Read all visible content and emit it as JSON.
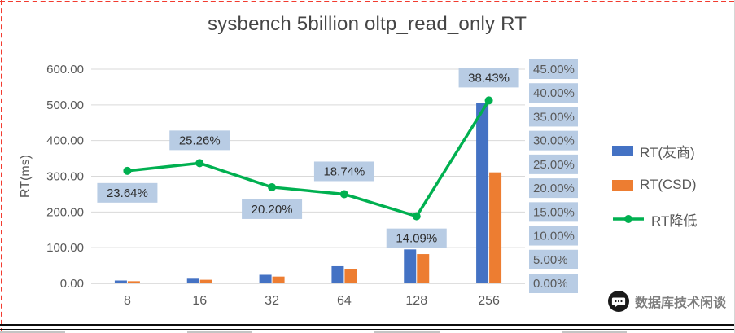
{
  "watermark": {
    "text": "数据库技术闲谈",
    "icon": "chat-bubble-icon"
  },
  "legend": [
    {
      "label": "RT(友商)",
      "color": "#4472c4",
      "marker": "bar"
    },
    {
      "label": "RT(CSD)",
      "color": "#ed7d31",
      "marker": "bar"
    },
    {
      "label": "RT降低",
      "color": "#00b050",
      "marker": "line"
    }
  ],
  "chart_data": {
    "type": "bar",
    "title": "sysbench 5billion oltp_read_only RT",
    "categories": [
      "8",
      "16",
      "32",
      "64",
      "128",
      "256"
    ],
    "series": [
      {
        "name": "RT(友商)",
        "type": "bar",
        "axis": "left",
        "color": "#4472c4",
        "values": [
          8,
          13,
          24,
          48,
          95,
          505
        ]
      },
      {
        "name": "RT(CSD)",
        "type": "bar",
        "axis": "left",
        "color": "#ed7d31",
        "values": [
          6,
          10,
          19,
          39,
          82,
          311
        ]
      },
      {
        "name": "RT降低",
        "type": "line",
        "axis": "right",
        "color": "#00b050",
        "values": [
          23.64,
          25.26,
          20.2,
          18.74,
          14.09,
          38.43
        ],
        "data_labels": [
          "23.64%",
          "25.26%",
          "20.20%",
          "18.74%",
          "14.09%",
          "38.43%"
        ],
        "data_label_positions": [
          "below",
          "above",
          "below",
          "above",
          "below",
          "above"
        ],
        "data_label_bg": "#b8cce4"
      }
    ],
    "left_axis": {
      "title": "RT(ms)",
      "min": 0,
      "max": 600,
      "step": 100,
      "ticks": [
        "600.00",
        "500.00",
        "400.00",
        "300.00",
        "200.00",
        "100.00",
        "0.00"
      ]
    },
    "right_axis": {
      "min": 0,
      "max": 45,
      "step": 5,
      "tick_bg": "#b8cce4",
      "ticks": [
        "45.00%",
        "40.00%",
        "35.00%",
        "30.00%",
        "25.00%",
        "20.00%",
        "15.00%",
        "10.00%",
        "5.00%",
        "0.00%"
      ]
    },
    "grid": true,
    "legend_position": "right"
  }
}
